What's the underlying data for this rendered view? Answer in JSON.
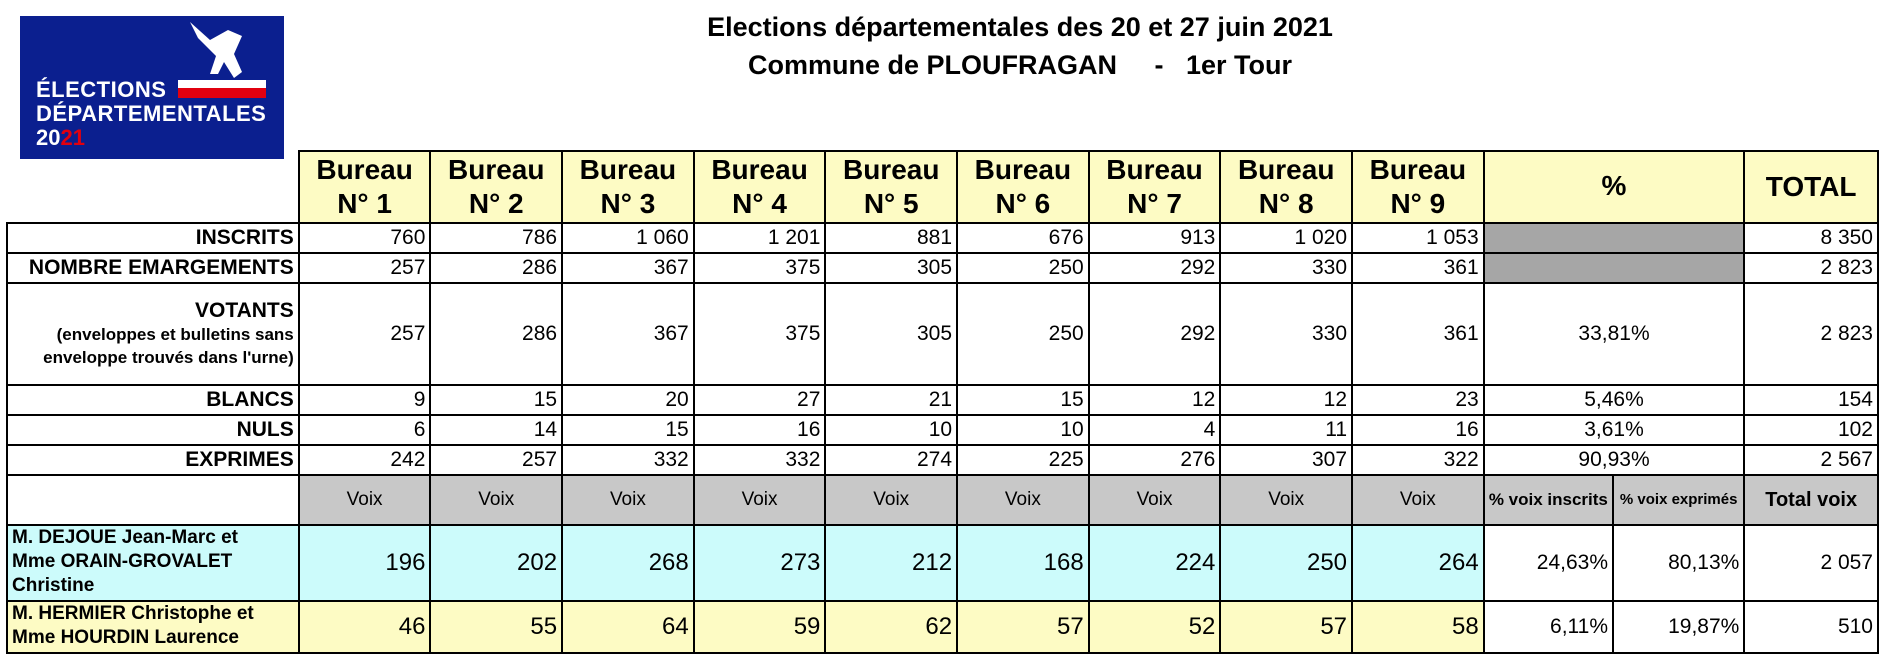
{
  "logo": {
    "line1": "ÉLECTIONS",
    "line2": "DÉPARTEMENTALES",
    "year_a": "20",
    "year_b": "21"
  },
  "title": {
    "line1": "Elections départementales des 20 et 27 juin 2021",
    "line2": "Commune de PLOUFRAGAN     -   1er Tour"
  },
  "header": {
    "bureaus": [
      {
        "l1": "Bureau",
        "l2": "N° 1"
      },
      {
        "l1": "Bureau",
        "l2": "N° 2"
      },
      {
        "l1": "Bureau",
        "l2": "N° 3"
      },
      {
        "l1": "Bureau",
        "l2": "N° 4"
      },
      {
        "l1": "Bureau",
        "l2": "N° 5"
      },
      {
        "l1": "Bureau",
        "l2": "N° 6"
      },
      {
        "l1": "Bureau",
        "l2": "N° 7"
      },
      {
        "l1": "Bureau",
        "l2": "N° 8"
      },
      {
        "l1": "Bureau",
        "l2": "N° 9"
      }
    ],
    "pct": "%",
    "total": "TOTAL"
  },
  "rows": {
    "inscrits": {
      "label": "INSCRITS",
      "values": [
        "760",
        "786",
        "1 060",
        "1 201",
        "881",
        "676",
        "913",
        "1 020",
        "1 053"
      ],
      "pct": "",
      "total": "8 350"
    },
    "emargements": {
      "label": "NOMBRE EMARGEMENTS",
      "values": [
        "257",
        "286",
        "367",
        "375",
        "305",
        "250",
        "292",
        "330",
        "361"
      ],
      "pct": "",
      "total": "2 823"
    },
    "votants": {
      "label": "VOTANTS",
      "sub1": "(enveloppes et bulletins sans",
      "sub2": "enveloppe trouvés dans l'urne)",
      "values": [
        "257",
        "286",
        "367",
        "375",
        "305",
        "250",
        "292",
        "330",
        "361"
      ],
      "pct": "33,81%",
      "total": "2 823"
    },
    "blancs": {
      "label": "BLANCS",
      "values": [
        "9",
        "15",
        "20",
        "27",
        "21",
        "15",
        "12",
        "12",
        "23"
      ],
      "pct": "5,46%",
      "total": "154"
    },
    "nuls": {
      "label": "NULS",
      "values": [
        "6",
        "14",
        "15",
        "16",
        "10",
        "10",
        "4",
        "11",
        "16"
      ],
      "pct": "3,61%",
      "total": "102"
    },
    "exprimes": {
      "label": "EXPRIMES",
      "values": [
        "242",
        "257",
        "332",
        "332",
        "274",
        "225",
        "276",
        "307",
        "322"
      ],
      "pct": "90,93%",
      "total": "2 567"
    }
  },
  "voix_header": {
    "voix": "Voix",
    "pct_inscrits": "% voix inscrits",
    "pct_exprimes": "% voix exprimés",
    "total_voix": "Total voix"
  },
  "candidates": [
    {
      "l1": "M. DEJOUE Jean-Marc et",
      "l2": "Mme ORAIN-GROVALET",
      "l3": "Christine",
      "values": [
        "196",
        "202",
        "268",
        "273",
        "212",
        "168",
        "224",
        "250",
        "264"
      ],
      "pct_inscrits": "24,63%",
      "pct_exprimes": "80,13%",
      "total": "2 057"
    },
    {
      "l1": "M. HERMIER Christophe et",
      "l2": "Mme HOURDIN Laurence",
      "l3": "",
      "values": [
        "46",
        "55",
        "64",
        "59",
        "62",
        "57",
        "52",
        "57",
        "58"
      ],
      "pct_inscrits": "6,11%",
      "pct_exprimes": "19,87%",
      "total": "510"
    }
  ],
  "colors": {
    "logo_blue": "#0b1f8f",
    "logo_red": "#e1000f",
    "header_yellow": "#fdfbc4",
    "cyan": "#ccfbfb",
    "gray": "#c8c8c8"
  }
}
